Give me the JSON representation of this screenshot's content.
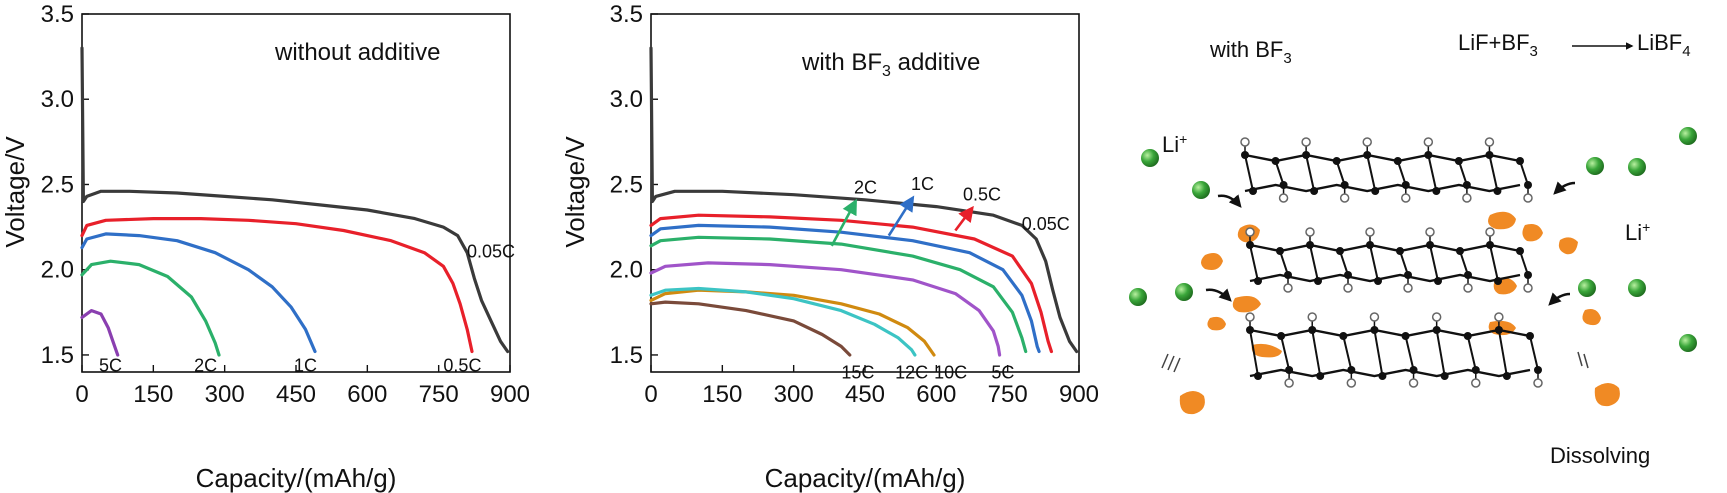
{
  "chart_data": [
    {
      "type": "line",
      "title": "",
      "annotation": "without additive",
      "xlabel": "Capacity/(mAh/g)",
      "ylabel": "Voltage/V",
      "xlim": [
        0,
        900
      ],
      "ylim": [
        1.4,
        3.5
      ],
      "xticks": [
        "0",
        "150",
        "300",
        "450",
        "600",
        "750",
        "900"
      ],
      "yticks": [
        "1.5",
        "2.0",
        "2.5",
        "3.0",
        "3.5"
      ],
      "series": [
        {
          "name": "0.05C",
          "color": "#3a3a3a",
          "label_at": [
            860,
            2.12
          ],
          "points": [
            [
              0,
              3.3
            ],
            [
              3,
              2.4
            ],
            [
              10,
              2.43
            ],
            [
              40,
              2.46
            ],
            [
              100,
              2.46
            ],
            [
              200,
              2.45
            ],
            [
              300,
              2.43
            ],
            [
              400,
              2.41
            ],
            [
              500,
              2.38
            ],
            [
              600,
              2.35
            ],
            [
              700,
              2.3
            ],
            [
              760,
              2.25
            ],
            [
              790,
              2.2
            ],
            [
              810,
              2.1
            ],
            [
              825,
              1.95
            ],
            [
              840,
              1.82
            ],
            [
              860,
              1.7
            ],
            [
              880,
              1.58
            ],
            [
              895,
              1.52
            ]
          ]
        },
        {
          "name": "0.5C",
          "color": "#e8202a",
          "label_at": [
            800,
            1.45
          ],
          "points": [
            [
              0,
              2.2
            ],
            [
              10,
              2.26
            ],
            [
              50,
              2.29
            ],
            [
              150,
              2.3
            ],
            [
              250,
              2.3
            ],
            [
              350,
              2.29
            ],
            [
              450,
              2.27
            ],
            [
              550,
              2.23
            ],
            [
              650,
              2.17
            ],
            [
              720,
              2.1
            ],
            [
              760,
              2.02
            ],
            [
              780,
              1.92
            ],
            [
              795,
              1.8
            ],
            [
              810,
              1.65
            ],
            [
              820,
              1.52
            ]
          ]
        },
        {
          "name": "1C",
          "color": "#2f6fc7",
          "label_at": [
            470,
            1.45
          ],
          "points": [
            [
              0,
              2.13
            ],
            [
              10,
              2.18
            ],
            [
              50,
              2.21
            ],
            [
              120,
              2.2
            ],
            [
              200,
              2.17
            ],
            [
              280,
              2.1
            ],
            [
              350,
              2.0
            ],
            [
              400,
              1.9
            ],
            [
              440,
              1.78
            ],
            [
              470,
              1.65
            ],
            [
              490,
              1.52
            ]
          ]
        },
        {
          "name": "2C",
          "color": "#2bb06a",
          "label_at": [
            260,
            1.45
          ],
          "points": [
            [
              0,
              1.97
            ],
            [
              20,
              2.03
            ],
            [
              60,
              2.05
            ],
            [
              120,
              2.03
            ],
            [
              180,
              1.96
            ],
            [
              230,
              1.84
            ],
            [
              260,
              1.7
            ],
            [
              280,
              1.57
            ],
            [
              288,
              1.5
            ]
          ]
        },
        {
          "name": "5C",
          "color": "#8a3fb0",
          "label_at": [
            60,
            1.45
          ],
          "points": [
            [
              0,
              1.72
            ],
            [
              20,
              1.76
            ],
            [
              40,
              1.74
            ],
            [
              55,
              1.66
            ],
            [
              65,
              1.58
            ],
            [
              75,
              1.5
            ]
          ]
        }
      ]
    },
    {
      "type": "line",
      "title": "",
      "annotation_prefix": "with BF",
      "annotation_sub": "3",
      "annotation_suffix": " additive",
      "xlabel": "Capacity/(mAh/g)",
      "ylabel": "Voltage/V",
      "xlim": [
        0,
        900
      ],
      "ylim": [
        1.4,
        3.5
      ],
      "xticks": [
        "0",
        "150",
        "300",
        "450",
        "600",
        "750",
        "900"
      ],
      "yticks": [
        "1.5",
        "2.0",
        "2.5",
        "3.0",
        "3.5"
      ],
      "series": [
        {
          "name": "0.05C",
          "color": "#3a3a3a",
          "label_at": [
            830,
            2.28
          ],
          "points": [
            [
              0,
              3.3
            ],
            [
              3,
              2.4
            ],
            [
              10,
              2.43
            ],
            [
              50,
              2.46
            ],
            [
              150,
              2.46
            ],
            [
              300,
              2.44
            ],
            [
              450,
              2.41
            ],
            [
              600,
              2.37
            ],
            [
              720,
              2.32
            ],
            [
              780,
              2.26
            ],
            [
              810,
              2.18
            ],
            [
              830,
              2.05
            ],
            [
              845,
              1.88
            ],
            [
              860,
              1.72
            ],
            [
              880,
              1.58
            ],
            [
              895,
              1.52
            ]
          ]
        },
        {
          "name": "0.5C",
          "color": "#e8202a",
          "label_at": null,
          "points": [
            [
              0,
              2.26
            ],
            [
              20,
              2.3
            ],
            [
              100,
              2.32
            ],
            [
              250,
              2.31
            ],
            [
              400,
              2.29
            ],
            [
              550,
              2.25
            ],
            [
              680,
              2.18
            ],
            [
              760,
              2.08
            ],
            [
              800,
              1.92
            ],
            [
              820,
              1.75
            ],
            [
              835,
              1.58
            ],
            [
              842,
              1.52
            ]
          ]
        },
        {
          "name": "1C",
          "color": "#2f6fc7",
          "label_at": null,
          "points": [
            [
              0,
              2.2
            ],
            [
              20,
              2.24
            ],
            [
              100,
              2.26
            ],
            [
              250,
              2.25
            ],
            [
              400,
              2.22
            ],
            [
              550,
              2.17
            ],
            [
              670,
              2.1
            ],
            [
              740,
              2.0
            ],
            [
              780,
              1.85
            ],
            [
              800,
              1.7
            ],
            [
              812,
              1.55
            ],
            [
              816,
              1.52
            ]
          ]
        },
        {
          "name": "2C",
          "color": "#2bb06a",
          "label_at": null,
          "points": [
            [
              0,
              2.14
            ],
            [
              20,
              2.17
            ],
            [
              100,
              2.19
            ],
            [
              250,
              2.18
            ],
            [
              400,
              2.15
            ],
            [
              550,
              2.08
            ],
            [
              650,
              2.0
            ],
            [
              720,
              1.9
            ],
            [
              760,
              1.75
            ],
            [
              780,
              1.6
            ],
            [
              788,
              1.52
            ]
          ]
        },
        {
          "name": "5C",
          "color": "#a054c9",
          "label_at": [
            740,
            1.41
          ],
          "points": [
            [
              0,
              1.98
            ],
            [
              30,
              2.02
            ],
            [
              120,
              2.04
            ],
            [
              250,
              2.03
            ],
            [
              400,
              2.0
            ],
            [
              550,
              1.94
            ],
            [
              640,
              1.86
            ],
            [
              690,
              1.76
            ],
            [
              720,
              1.64
            ],
            [
              730,
              1.55
            ],
            [
              733,
              1.5
            ]
          ]
        },
        {
          "name": "10C",
          "color": "#d08a10",
          "label_at": [
            630,
            1.41
          ],
          "points": [
            [
              0,
              1.82
            ],
            [
              30,
              1.86
            ],
            [
              100,
              1.88
            ],
            [
              200,
              1.87
            ],
            [
              300,
              1.85
            ],
            [
              400,
              1.8
            ],
            [
              480,
              1.74
            ],
            [
              540,
              1.66
            ],
            [
              575,
              1.58
            ],
            [
              595,
              1.5
            ]
          ]
        },
        {
          "name": "12C",
          "color": "#3cc4c4",
          "label_at": [
            548,
            1.41
          ],
          "points": [
            [
              0,
              1.85
            ],
            [
              30,
              1.88
            ],
            [
              100,
              1.89
            ],
            [
              200,
              1.87
            ],
            [
              300,
              1.83
            ],
            [
              400,
              1.76
            ],
            [
              470,
              1.68
            ],
            [
              520,
              1.6
            ],
            [
              548,
              1.53
            ],
            [
              555,
              1.5
            ]
          ]
        },
        {
          "name": "15C",
          "color": "#7a4a3a",
          "label_at": [
            435,
            1.41
          ],
          "points": [
            [
              0,
              1.8
            ],
            [
              30,
              1.81
            ],
            [
              100,
              1.8
            ],
            [
              200,
              1.76
            ],
            [
              300,
              1.7
            ],
            [
              360,
              1.62
            ],
            [
              400,
              1.55
            ],
            [
              418,
              1.5
            ]
          ]
        }
      ],
      "arrows": [
        {
          "label": "2C",
          "color": "#2bb06a",
          "from": [
            380,
            2.14
          ],
          "to": [
            430,
            2.4
          ]
        },
        {
          "label": "1C",
          "color": "#2f6fc7",
          "from": [
            500,
            2.2
          ],
          "to": [
            550,
            2.42
          ]
        },
        {
          "label": "0.5C",
          "color": "#e8202a",
          "from": [
            640,
            2.23
          ],
          "to": [
            675,
            2.36
          ]
        }
      ]
    }
  ],
  "schematic": {
    "label_with_prefix": "with BF",
    "label_with_sub": "3",
    "reaction_left": "LiF+BF",
    "reaction_left_sub": "3",
    "reaction_right": "LiBF",
    "reaction_right_sub": "4",
    "li_label": "Li",
    "li_sup": "+",
    "dissolving_label": "Dissolving",
    "ion_color": "#3aa63a",
    "fragment_color": "#f08a24"
  }
}
